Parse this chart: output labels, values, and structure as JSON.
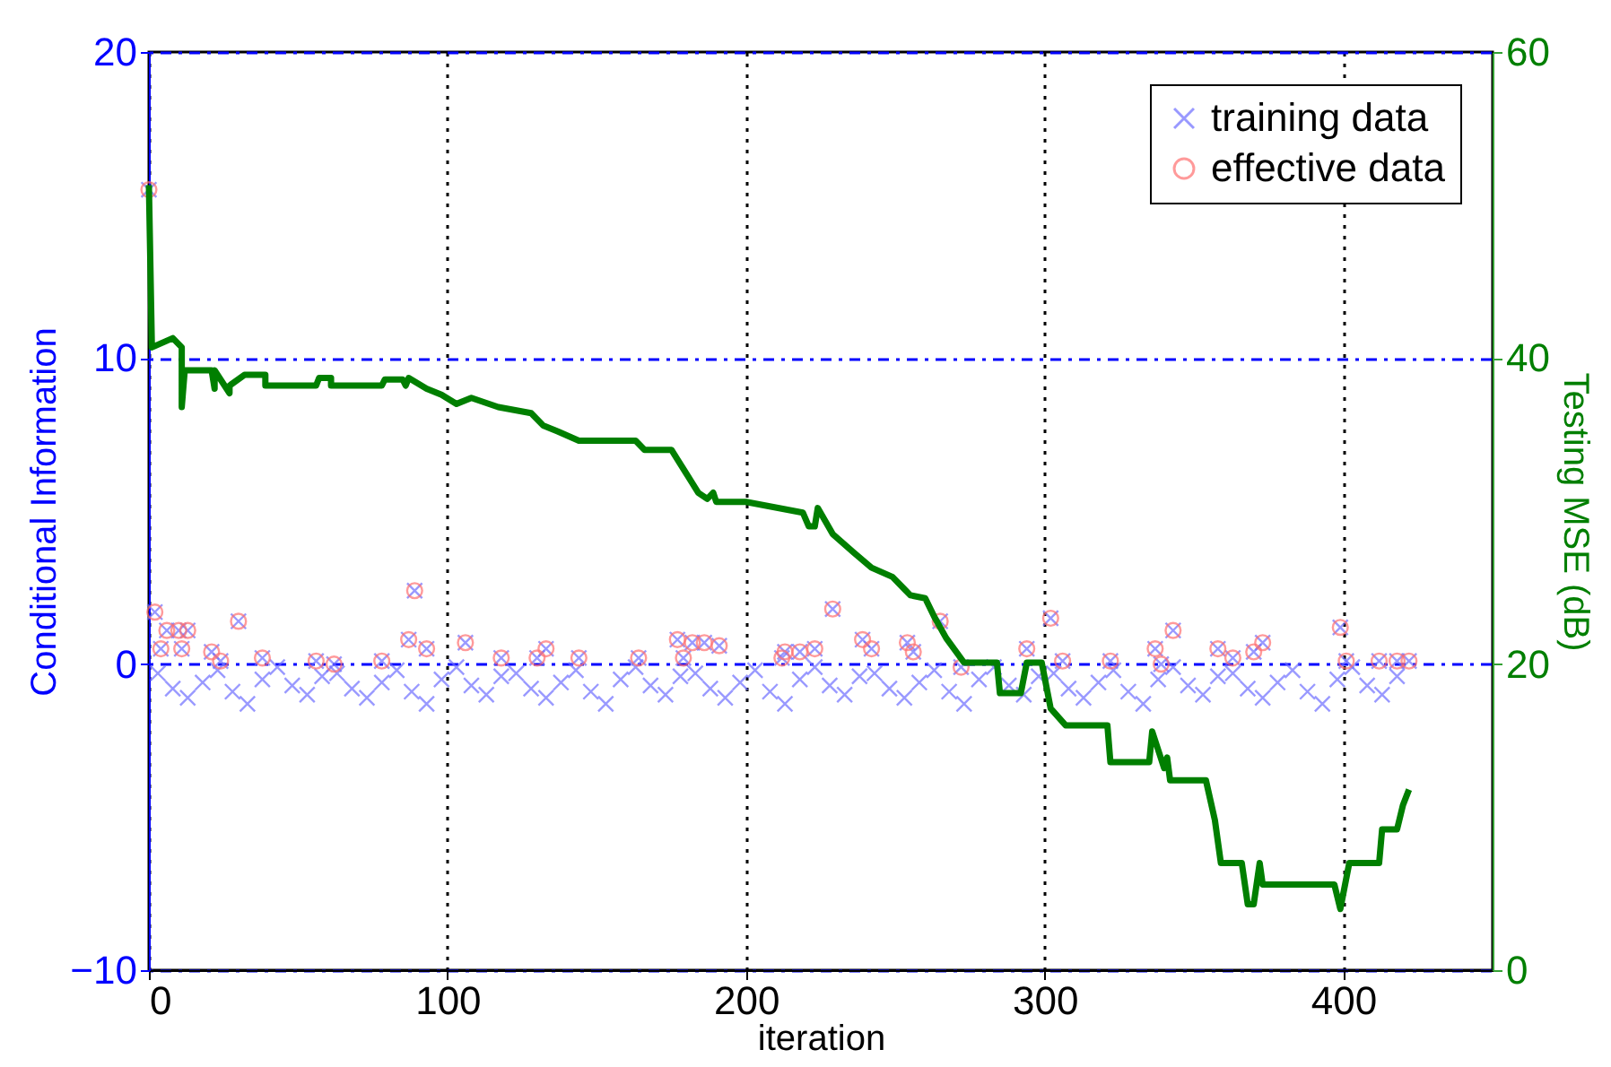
{
  "chart_data": {
    "type": "scatter",
    "xlabel": "iteration",
    "ylabel": "Conditional Information",
    "y2label": "Testing MSE (dB)",
    "xlim": [
      0,
      450
    ],
    "xticks": [
      0,
      100,
      200,
      300,
      400
    ],
    "ylim": [
      -10,
      20
    ],
    "yticks": [
      -10,
      0,
      10,
      20
    ],
    "y2lim": [
      0,
      60
    ],
    "y2ticks": [
      0,
      20,
      40,
      60
    ],
    "grid": true,
    "legend": "top right",
    "series": [
      {
        "name": "training data",
        "marker": "cross",
        "color": "#6f6fff",
        "x": [
          3,
          8,
          13,
          18,
          23,
          28,
          33,
          38,
          43,
          48,
          53,
          58,
          63,
          68,
          73,
          78,
          83,
          88,
          93,
          98,
          103,
          108,
          113,
          118,
          123,
          128,
          133,
          138,
          143,
          148,
          153,
          158,
          163,
          168,
          173,
          178,
          183,
          188,
          193,
          198,
          203,
          208,
          213,
          218,
          223,
          228,
          233,
          238,
          243,
          248,
          253,
          258,
          263,
          268,
          273,
          278,
          283,
          288,
          293,
          298,
          303,
          308,
          313,
          318,
          323,
          328,
          333,
          338,
          343,
          348,
          353,
          358,
          363,
          368,
          373,
          378,
          383,
          388,
          393,
          398,
          403,
          408,
          413,
          418,
          0,
          2,
          6,
          10,
          13,
          4,
          11,
          30,
          21,
          24,
          38,
          56,
          62,
          78,
          89,
          87,
          93,
          106,
          118,
          130,
          133,
          144,
          164,
          177,
          182,
          186,
          191,
          179,
          212,
          218,
          213,
          223,
          229,
          239,
          242,
          254,
          256,
          265,
          272,
          294,
          302,
          306,
          322,
          337,
          339,
          343,
          358,
          363,
          373,
          370,
          399,
          401,
          412,
          418,
          422
        ],
        "values": [
          -0.3,
          -0.8,
          -1.1,
          -0.6,
          -0.2,
          -0.9,
          -1.3,
          -0.5,
          -0.1,
          -0.7,
          -1.0,
          -0.4,
          -0.3,
          -0.8,
          -1.1,
          -0.6,
          -0.2,
          -0.9,
          -1.3,
          -0.5,
          -0.1,
          -0.7,
          -1.0,
          -0.4,
          -0.3,
          -0.8,
          -1.1,
          -0.6,
          -0.2,
          -0.9,
          -1.3,
          -0.5,
          -0.1,
          -0.7,
          -1.0,
          -0.4,
          -0.3,
          -0.8,
          -1.1,
          -0.6,
          -0.2,
          -0.9,
          -1.3,
          -0.5,
          -0.1,
          -0.7,
          -1.0,
          -0.4,
          -0.3,
          -0.8,
          -1.1,
          -0.6,
          -0.2,
          -0.9,
          -1.3,
          -0.5,
          -0.1,
          -0.7,
          -1.0,
          -0.4,
          -0.3,
          -0.8,
          -1.1,
          -0.6,
          -0.2,
          -0.9,
          -1.3,
          -0.5,
          -0.1,
          -0.7,
          -1.0,
          -0.4,
          -0.3,
          -0.8,
          -1.1,
          -0.6,
          -0.2,
          -0.9,
          -1.3,
          -0.5,
          -0.1,
          -0.7,
          -1.0,
          -0.4,
          15.5,
          1.7,
          1.1,
          1.1,
          1.1,
          0.5,
          0.5,
          1.4,
          0.4,
          0.1,
          0.2,
          0.1,
          0.0,
          0.1,
          2.4,
          0.8,
          0.5,
          0.7,
          0.2,
          0.2,
          0.5,
          0.2,
          0.2,
          0.8,
          0.7,
          0.7,
          0.6,
          0.2,
          0.2,
          0.4,
          0.4,
          0.5,
          1.8,
          0.8,
          0.5,
          0.7,
          0.4,
          1.4,
          -0.1,
          0.5,
          1.5,
          0.1,
          0.1,
          0.5,
          0.0,
          1.1,
          0.5,
          0.2,
          0.7,
          0.4,
          1.2,
          0.1,
          0.1,
          0.1,
          0.1
        ]
      },
      {
        "name": "effective data",
        "marker": "circle",
        "color": "#ff7070",
        "x": [
          0,
          2,
          6,
          10,
          13,
          4,
          11,
          30,
          21,
          24,
          38,
          56,
          62,
          78,
          89,
          87,
          93,
          106,
          118,
          130,
          133,
          144,
          164,
          177,
          182,
          186,
          191,
          179,
          212,
          218,
          213,
          223,
          229,
          239,
          242,
          254,
          256,
          265,
          272,
          294,
          302,
          306,
          322,
          337,
          339,
          343,
          358,
          363,
          373,
          370,
          399,
          401,
          412,
          418,
          422
        ],
        "values": [
          15.5,
          1.7,
          1.1,
          1.1,
          1.1,
          0.5,
          0.5,
          1.4,
          0.4,
          0.1,
          0.2,
          0.1,
          0.0,
          0.1,
          2.4,
          0.8,
          0.5,
          0.7,
          0.2,
          0.2,
          0.5,
          0.2,
          0.2,
          0.8,
          0.7,
          0.7,
          0.6,
          0.2,
          0.2,
          0.4,
          0.4,
          0.5,
          1.8,
          0.8,
          0.5,
          0.7,
          0.4,
          1.4,
          -0.1,
          0.5,
          1.5,
          0.1,
          0.1,
          0.5,
          0.0,
          1.1,
          0.5,
          0.2,
          0.7,
          0.4,
          1.2,
          0.1,
          0.1,
          0.1,
          0.1
        ]
      },
      {
        "type": "line",
        "axis": "y2",
        "color": "#007f00",
        "line_style": "solid",
        "x": [
          0,
          1,
          8,
          11,
          11,
          12,
          21,
          22,
          22,
          27,
          27,
          32,
          32,
          39,
          39,
          56,
          57,
          61,
          61,
          78,
          79,
          85,
          86,
          87,
          93,
          98,
          103,
          108,
          117,
          128,
          132,
          137,
          144,
          163,
          166,
          175,
          184,
          187,
          189,
          190,
          200,
          219,
          221,
          223,
          224,
          229,
          236,
          242,
          249,
          253,
          255,
          260,
          263,
          267,
          273,
          284,
          285,
          292,
          294,
          299,
          302,
          307,
          321,
          322,
          335,
          336,
          340,
          341,
          342,
          354,
          357,
          359,
          366,
          368,
          370,
          372,
          373,
          397,
          399,
          402,
          412,
          413,
          418,
          420,
          422
        ],
        "values": [
          51.3,
          40.7,
          41.3,
          40.7,
          36.8,
          39.2,
          39.2,
          38.0,
          39.2,
          37.7,
          38.2,
          38.9,
          38.9,
          38.9,
          38.2,
          38.2,
          38.7,
          38.7,
          38.2,
          38.2,
          38.6,
          38.6,
          38.2,
          38.7,
          38.0,
          37.6,
          37.0,
          37.4,
          36.8,
          36.4,
          35.6,
          35.2,
          34.6,
          34.6,
          34.0,
          34.0,
          31.2,
          30.8,
          31.2,
          30.6,
          30.6,
          29.9,
          29.0,
          29.0,
          30.2,
          28.5,
          27.3,
          26.3,
          25.7,
          24.9,
          24.5,
          24.3,
          23.1,
          21.7,
          20.1,
          20.1,
          18.1,
          18.1,
          20.1,
          20.1,
          17.1,
          16.0,
          16.0,
          13.6,
          13.6,
          15.6,
          13.2,
          13.9,
          12.4,
          12.4,
          9.8,
          7.0,
          7.0,
          4.3,
          4.3,
          7.0,
          5.6,
          5.6,
          4.0,
          7.0,
          7.0,
          9.2,
          9.2,
          10.8,
          11.8
        ]
      }
    ]
  }
}
